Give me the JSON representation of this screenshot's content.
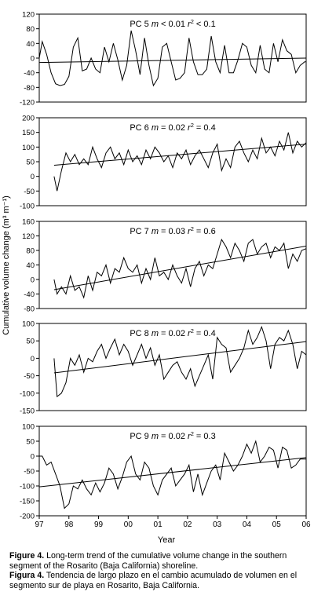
{
  "figure": {
    "ylabel": "Cumulative volume change (m³ m⁻¹)",
    "xlabel": "Year",
    "x_ticks": [
      "97",
      "98",
      "99",
      "00",
      "01",
      "02",
      "03",
      "04",
      "05",
      "06"
    ]
  },
  "caption": {
    "en_label": "Figure 4.",
    "en_text": " Long-term trend of the cumulative volume change in the southern segment of the Rosarito (Baja California) shoreline.",
    "es_label": "Figura 4.",
    "es_text": " Tendencia de largo plazo en el cambio acumulado de volumen en el segmento sur de playa en Rosarito, Baja California."
  },
  "chart_data": [
    {
      "type": "line",
      "profile": "PC 5",
      "m_label": "m",
      "m_value": " < 0.01",
      "r2_label": "r",
      "r2_value": " < 0.1",
      "ylim": [
        -120,
        120
      ],
      "y_ticks": [
        120,
        80,
        40,
        0,
        -40,
        -80,
        -120
      ],
      "x": [
        97.0,
        97.1,
        97.25,
        97.4,
        97.55,
        97.7,
        97.85,
        98.0,
        98.15,
        98.3,
        98.45,
        98.6,
        98.75,
        98.9,
        99.05,
        99.2,
        99.35,
        99.5,
        99.65,
        99.8,
        99.95,
        100.1,
        100.25,
        100.4,
        100.55,
        100.7,
        100.85,
        101.0,
        101.15,
        101.3,
        101.45,
        101.6,
        101.75,
        101.9,
        102.05,
        102.2,
        102.35,
        102.5,
        102.65,
        102.8,
        102.95,
        103.1,
        103.25,
        103.4,
        103.55,
        103.7,
        103.85,
        104.0,
        104.15,
        104.3,
        104.45,
        104.6,
        104.75,
        104.9,
        105.05,
        105.2,
        105.35,
        105.5,
        105.65,
        105.8,
        105.95,
        106.0
      ],
      "y": [
        0,
        45,
        10,
        -40,
        -70,
        -75,
        -72,
        -50,
        30,
        55,
        -35,
        -30,
        0,
        -30,
        -40,
        30,
        -10,
        40,
        -5,
        -60,
        -20,
        75,
        20,
        -45,
        55,
        -20,
        -75,
        -55,
        30,
        40,
        -10,
        -60,
        -55,
        -40,
        55,
        -10,
        -45,
        -45,
        -30,
        60,
        -10,
        -40,
        35,
        -40,
        -40,
        -5,
        40,
        30,
        -20,
        -40,
        35,
        -30,
        -40,
        40,
        -10,
        50,
        20,
        10,
        -40,
        -20,
        -10,
        -10
      ],
      "trend": [
        [
          97,
          -12
        ],
        [
          106,
          0
        ]
      ]
    },
    {
      "type": "line",
      "profile": "PC 6",
      "m_label": "m",
      "m_value": " = 0.02",
      "r2_label": "r",
      "r2_value": " = 0.4",
      "ylim": [
        -100,
        200
      ],
      "y_ticks": [
        200,
        150,
        100,
        50,
        0,
        -50,
        -100
      ],
      "x": [
        97.5,
        97.6,
        97.75,
        97.9,
        98.05,
        98.2,
        98.35,
        98.5,
        98.65,
        98.8,
        98.95,
        99.1,
        99.25,
        99.4,
        99.55,
        99.7,
        99.85,
        100.0,
        100.15,
        100.3,
        100.45,
        100.6,
        100.75,
        100.9,
        101.05,
        101.2,
        101.35,
        101.5,
        101.65,
        101.8,
        101.95,
        102.1,
        102.25,
        102.4,
        102.55,
        102.7,
        102.85,
        103.0,
        103.15,
        103.3,
        103.45,
        103.6,
        103.75,
        103.9,
        104.05,
        104.2,
        104.35,
        104.5,
        104.65,
        104.8,
        104.95,
        105.1,
        105.25,
        105.4,
        105.55,
        105.7,
        105.85,
        106.0
      ],
      "y": [
        0,
        -50,
        20,
        80,
        50,
        75,
        40,
        60,
        40,
        100,
        60,
        30,
        80,
        100,
        60,
        80,
        40,
        90,
        50,
        70,
        40,
        90,
        60,
        100,
        80,
        50,
        70,
        30,
        80,
        60,
        90,
        40,
        70,
        90,
        60,
        30,
        80,
        110,
        20,
        60,
        30,
        100,
        120,
        80,
        50,
        90,
        60,
        130,
        80,
        100,
        70,
        120,
        90,
        150,
        80,
        120,
        100,
        115
      ],
      "trend": [
        [
          97.5,
          38
        ],
        [
          106,
          110
        ]
      ]
    },
    {
      "type": "line",
      "profile": "PC 7",
      "m_label": "m",
      "m_value": " = 0.03",
      "r2_label": "r",
      "r2_value": " = 0.6",
      "ylim": [
        -80,
        160
      ],
      "y_ticks": [
        160,
        120,
        80,
        40,
        0,
        -40,
        -80
      ],
      "x": [
        97.5,
        97.6,
        97.75,
        97.9,
        98.05,
        98.2,
        98.35,
        98.5,
        98.65,
        98.8,
        98.95,
        99.1,
        99.25,
        99.4,
        99.55,
        99.7,
        99.85,
        100.0,
        100.15,
        100.3,
        100.45,
        100.6,
        100.75,
        100.9,
        101.05,
        101.2,
        101.35,
        101.5,
        101.65,
        101.8,
        101.95,
        102.1,
        102.25,
        102.4,
        102.55,
        102.7,
        102.85,
        103.0,
        103.15,
        103.3,
        103.45,
        103.6,
        103.75,
        103.9,
        104.05,
        104.2,
        104.35,
        104.5,
        104.65,
        104.8,
        104.95,
        105.1,
        105.25,
        105.4,
        105.55,
        105.7,
        105.85,
        106.0
      ],
      "y": [
        0,
        -40,
        -20,
        -40,
        10,
        -30,
        -20,
        -50,
        10,
        -30,
        20,
        10,
        40,
        -10,
        30,
        20,
        60,
        30,
        20,
        40,
        -10,
        30,
        0,
        60,
        10,
        20,
        0,
        40,
        10,
        -10,
        30,
        -20,
        30,
        50,
        10,
        40,
        30,
        70,
        110,
        90,
        60,
        100,
        80,
        50,
        100,
        110,
        70,
        90,
        100,
        60,
        90,
        80,
        100,
        30,
        70,
        50,
        80,
        85
      ],
      "trend": [
        [
          97.5,
          -28
        ],
        [
          106,
          92
        ]
      ]
    },
    {
      "type": "line",
      "profile": "PC 8",
      "m_label": "m",
      "m_value": " = 0.02",
      "r2_label": "r",
      "r2_value": " = 0.4",
      "ylim": [
        -150,
        100
      ],
      "y_ticks": [
        100,
        50,
        0,
        -50,
        -100,
        -150
      ],
      "x": [
        97.5,
        97.6,
        97.75,
        97.9,
        98.05,
        98.2,
        98.35,
        98.5,
        98.65,
        98.8,
        98.95,
        99.1,
        99.25,
        99.4,
        99.55,
        99.7,
        99.85,
        100.0,
        100.15,
        100.3,
        100.45,
        100.6,
        100.75,
        100.9,
        101.05,
        101.2,
        101.35,
        101.5,
        101.65,
        101.8,
        101.95,
        102.1,
        102.25,
        102.4,
        102.55,
        102.7,
        102.85,
        103.0,
        103.15,
        103.3,
        103.45,
        103.6,
        103.75,
        103.9,
        104.05,
        104.2,
        104.35,
        104.5,
        104.65,
        104.8,
        104.95,
        105.1,
        105.25,
        105.4,
        105.55,
        105.7,
        105.85,
        106.0
      ],
      "y": [
        0,
        -110,
        -100,
        -70,
        0,
        -20,
        10,
        -40,
        0,
        -10,
        20,
        40,
        0,
        30,
        55,
        10,
        40,
        20,
        -20,
        10,
        40,
        0,
        30,
        -20,
        10,
        -60,
        -40,
        -20,
        -10,
        -40,
        -60,
        -30,
        -80,
        -50,
        -20,
        10,
        -60,
        60,
        40,
        30,
        -40,
        -20,
        0,
        30,
        80,
        40,
        60,
        90,
        50,
        -30,
        40,
        60,
        50,
        80,
        40,
        -30,
        20,
        10
      ],
      "trend": [
        [
          97.5,
          -42
        ],
        [
          106,
          48
        ]
      ]
    },
    {
      "type": "line",
      "profile": "PC 9",
      "m_label": "m",
      "m_value": " = 0.02",
      "r2_label": "r",
      "r2_value": " = 0.3",
      "ylim": [
        -200,
        100
      ],
      "y_ticks": [
        100,
        50,
        0,
        -50,
        -100,
        -150,
        -200
      ],
      "x": [
        97.0,
        97.1,
        97.25,
        97.4,
        97.55,
        97.7,
        97.85,
        98.0,
        98.15,
        98.3,
        98.45,
        98.6,
        98.75,
        98.9,
        99.05,
        99.2,
        99.35,
        99.5,
        99.65,
        99.8,
        99.95,
        100.1,
        100.25,
        100.4,
        100.55,
        100.7,
        100.85,
        101.0,
        101.15,
        101.3,
        101.45,
        101.6,
        101.75,
        101.9,
        102.05,
        102.2,
        102.35,
        102.5,
        102.65,
        102.8,
        102.95,
        103.1,
        103.25,
        103.4,
        103.55,
        103.7,
        103.85,
        104.0,
        104.15,
        104.3,
        104.45,
        104.6,
        104.75,
        104.9,
        105.05,
        105.2,
        105.35,
        105.5,
        105.65,
        105.8,
        105.95,
        106.0
      ],
      "y": [
        0,
        0,
        -30,
        -20,
        -60,
        -100,
        -175,
        -160,
        -100,
        -110,
        -80,
        -110,
        -130,
        -90,
        -120,
        -90,
        -40,
        -60,
        -110,
        -70,
        -20,
        0,
        -60,
        -80,
        -20,
        -40,
        -100,
        -130,
        -80,
        -60,
        -40,
        -100,
        -80,
        -60,
        -30,
        -120,
        -60,
        -130,
        -90,
        -50,
        -30,
        -80,
        10,
        -20,
        -50,
        -30,
        0,
        40,
        10,
        50,
        -20,
        0,
        30,
        20,
        -40,
        30,
        20,
        -40,
        -30,
        -10,
        -10,
        -10
      ],
      "trend": [
        [
          97,
          -103
        ],
        [
          106,
          -5
        ]
      ]
    }
  ]
}
